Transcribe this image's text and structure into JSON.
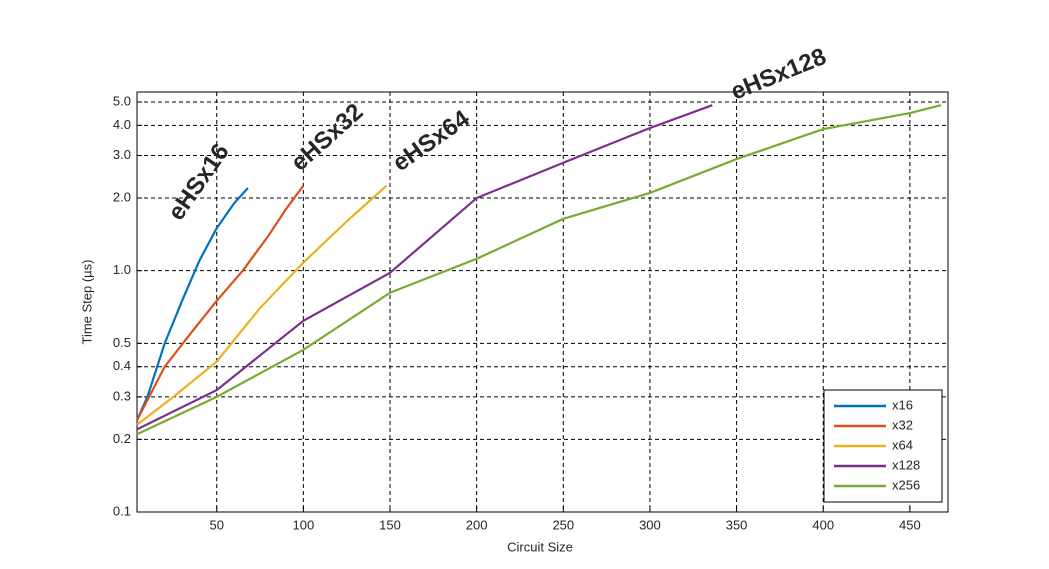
{
  "chart_data": {
    "type": "line",
    "xlabel": "Circuit Size",
    "ylabel": "Time Step (µs)",
    "xlim": [
      4,
      472
    ],
    "xticks": [
      50,
      100,
      150,
      200,
      250,
      300,
      350,
      400,
      450
    ],
    "ylim": [
      0.1,
      5.5
    ],
    "ylog": true,
    "yticks": [
      0.1,
      0.2,
      0.3,
      0.4,
      0.5,
      {
        "value": 1,
        "label": "1.0"
      },
      {
        "value": 2,
        "label": "2.0"
      },
      {
        "value": 3,
        "label": "3.0"
      },
      {
        "value": 4,
        "label": "4.0"
      },
      {
        "value": 5,
        "label": "5.0"
      }
    ],
    "grid": true,
    "legend": "lower right",
    "series": [
      {
        "name": "x16",
        "color": "#0072bd",
        "x": [
          4,
          10,
          20,
          30,
          40,
          50,
          60,
          68
        ],
        "values": [
          0.24,
          0.3,
          0.5,
          0.75,
          1.1,
          1.5,
          1.9,
          2.2
        ]
      },
      {
        "name": "x32",
        "color": "#d95319",
        "x": [
          4,
          20,
          35,
          50,
          65,
          80,
          90,
          100
        ],
        "values": [
          0.24,
          0.4,
          0.55,
          0.75,
          1.0,
          1.4,
          1.8,
          2.25
        ]
      },
      {
        "name": "x64",
        "color": "#edb120",
        "x": [
          4,
          25,
          50,
          75,
          100,
          125,
          148
        ],
        "values": [
          0.23,
          0.3,
          0.42,
          0.7,
          1.08,
          1.6,
          2.25
        ]
      },
      {
        "name": "x128",
        "color": "#7e2f8e",
        "x": [
          4,
          50,
          100,
          150,
          200,
          250,
          300,
          336
        ],
        "values": [
          0.22,
          0.32,
          0.62,
          0.98,
          2.0,
          2.8,
          3.9,
          4.85
        ]
      },
      {
        "name": "x256",
        "color": "#77ac30",
        "x": [
          4,
          50,
          100,
          150,
          200,
          250,
          300,
          350,
          400,
          450,
          468
        ],
        "values": [
          0.21,
          0.3,
          0.47,
          0.81,
          1.12,
          1.64,
          2.1,
          2.9,
          3.86,
          4.5,
          4.85
        ]
      }
    ],
    "annotations": [
      {
        "text": "eHSx16",
        "color": "#1f70b8"
      },
      {
        "text": "eHSx32",
        "color": "#c55a11"
      },
      {
        "text": "eHSx64",
        "color": "#000000"
      },
      {
        "text": "eHSx128",
        "color": "#7030a0"
      }
    ]
  }
}
